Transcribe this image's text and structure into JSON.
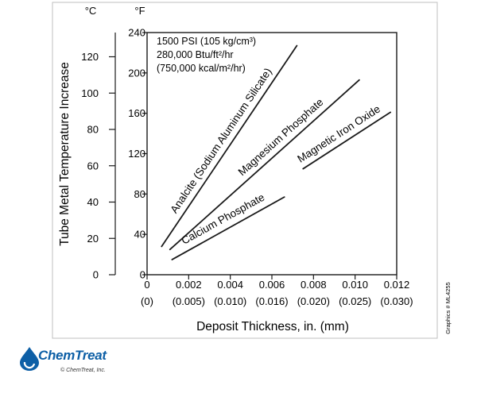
{
  "chart_data": {
    "type": "line",
    "xlabel": "Deposit Thickness, in. (mm)",
    "ylabel": "Tube Metal Temperature Increase",
    "y_unit_left": "°C",
    "y_unit_right": "°F",
    "xlim": [
      0,
      0.012
    ],
    "ylim_f": [
      0,
      240
    ],
    "ylim_c": [
      0,
      133.33
    ],
    "x_ticks": [
      "0",
      "0.002",
      "0.004",
      "0.006",
      "0.008",
      "0.010",
      "0.012"
    ],
    "x_ticks_mm": [
      "(0)",
      "(0.005)",
      "(0.010)",
      "(0.016)",
      "(0.020)",
      "(0.025)",
      "(0.030)"
    ],
    "y_ticks_f": [
      "0",
      "40",
      "80",
      "120",
      "160",
      "200",
      "240"
    ],
    "y_ticks_c": [
      "0",
      "20",
      "40",
      "60",
      "80",
      "100",
      "120"
    ],
    "annotation": [
      "1500 PSI (105 kg/cm³)",
      "280,000 Btu/ft²/hr",
      "(750,000 kcal/m²/hr)"
    ],
    "grid": false,
    "series": [
      {
        "name": "Analcite (Sodium Aluminum Silicate)",
        "x": [
          0.0007,
          0.0072
        ],
        "y": [
          28,
          227
        ],
        "color": "#1a1a1a"
      },
      {
        "name": "Magnesium Phosphate",
        "x": [
          0.0011,
          0.0102
        ],
        "y": [
          25,
          193
        ],
        "color": "#1a1a1a"
      },
      {
        "name": "Magnetic Iron Oxide",
        "x": [
          0.0075,
          0.0117
        ],
        "y": [
          105,
          161
        ],
        "color": "#1a1a1a"
      },
      {
        "name": "Calcium Phosphate",
        "x": [
          0.0012,
          0.0066
        ],
        "y": [
          15,
          77
        ],
        "color": "#1a1a1a"
      }
    ]
  },
  "side_note": "Graphics # ML4255",
  "logo": {
    "name": "ChemTreat",
    "copyright": "© ChemTreat, Inc."
  }
}
